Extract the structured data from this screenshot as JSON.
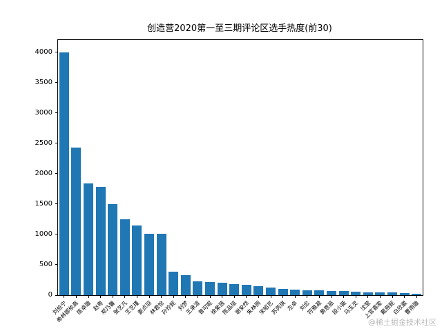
{
  "chart_data": {
    "type": "bar",
    "title": "创造营2020第一至三期评论区选手热度(前30)",
    "categories": [
      "刘些宁",
      "希林娜依高",
      "陈卓璇",
      "赵粤",
      "郑乃馨",
      "张艺凡",
      "王艺瑾",
      "姜贞羽",
      "林君怡",
      "孙珍妮",
      "刘梦",
      "王承渲",
      "曾可妮",
      "徐紫茵",
      "陈品瑄",
      "谢安然",
      "朱林雨",
      "宋昭艺",
      "苏芮琪",
      "左卓",
      "刘念",
      "符雅凝",
      "黄恩茹",
      "段小薇",
      "马玉灵",
      "沈莹",
      "上官喜爱",
      "戴燕妮",
      "白欣葳",
      "曹雨璇"
    ],
    "values": [
      4000,
      2430,
      1840,
      1780,
      1500,
      1250,
      1150,
      1010,
      1005,
      390,
      330,
      225,
      215,
      205,
      180,
      165,
      150,
      130,
      105,
      95,
      85,
      80,
      70,
      65,
      55,
      50,
      45,
      40,
      35,
      25
    ],
    "xlabel": "",
    "ylabel": "",
    "ylim": [
      0,
      4200
    ],
    "yticks": [
      0,
      500,
      1000,
      1500,
      2000,
      2500,
      3000,
      3500,
      4000
    ],
    "bar_color": "#1f77b4",
    "grid": false,
    "legend_position": "none",
    "xtick_rotation": 45
  },
  "watermark": "@稀土掘金技术社区"
}
